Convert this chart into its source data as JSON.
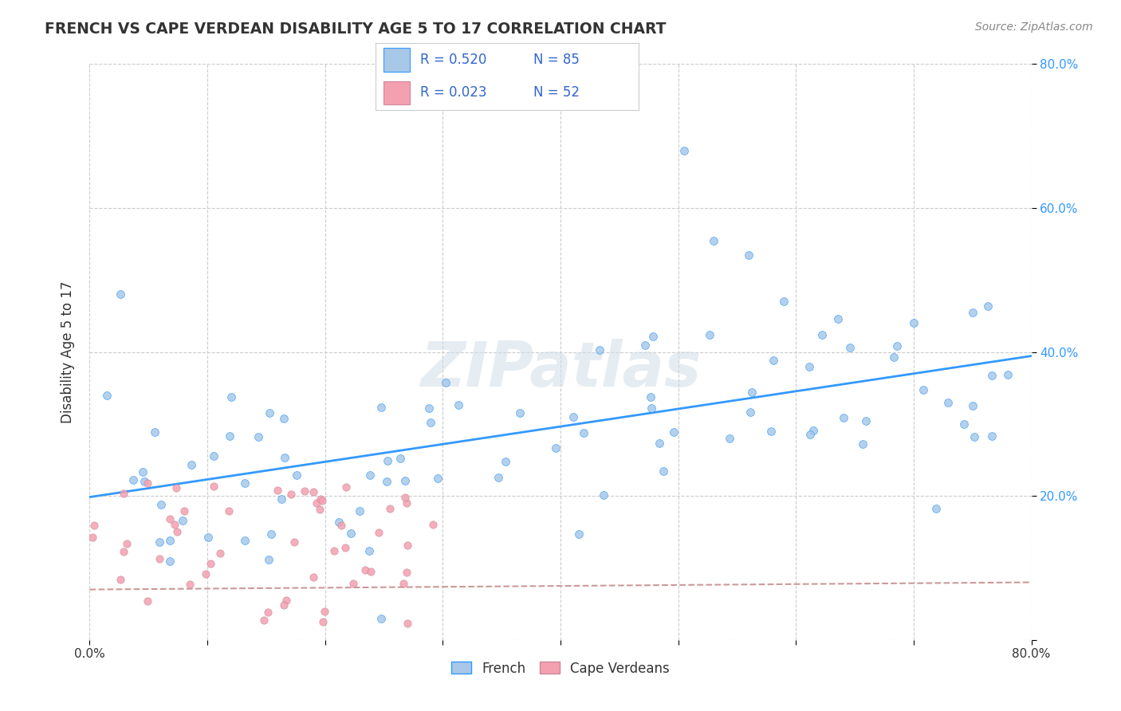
{
  "title": "FRENCH VS CAPE VERDEAN DISABILITY AGE 5 TO 17 CORRELATION CHART",
  "source_text": "Source: ZipAtlas.com",
  "ylabel": "Disability Age 5 to 17",
  "xlim": [
    0.0,
    0.8
  ],
  "ylim": [
    0.0,
    0.8
  ],
  "legend_r1": "R = 0.520",
  "legend_n1": "N = 85",
  "legend_r2": "R = 0.023",
  "legend_n2": "N = 52",
  "legend_label1": "French",
  "legend_label2": "Cape Verdeans",
  "scatter_color1": "#a8c8e8",
  "scatter_color2": "#f4a0b0",
  "line_color1": "#3399ff",
  "line_color2": "#e8aaaa",
  "line_color2_dash": "#cc9999",
  "text_color_blue": "#3366cc",
  "text_color_axis": "#3399ff",
  "background_color": "#ffffff",
  "grid_color": "#cccccc",
  "ytick_positions": [
    0.0,
    0.2,
    0.4,
    0.6,
    0.8
  ],
  "ytick_labels_right": [
    "",
    "20.0%",
    "40.0%",
    "60.0%",
    "80.0%"
  ],
  "xtick_positions": [
    0.0,
    0.1,
    0.2,
    0.3,
    0.4,
    0.5,
    0.6,
    0.7,
    0.8
  ],
  "xtick_labels": [
    "0.0%",
    "",
    "",
    "",
    "",
    "",
    "",
    "",
    "80.0%"
  ]
}
